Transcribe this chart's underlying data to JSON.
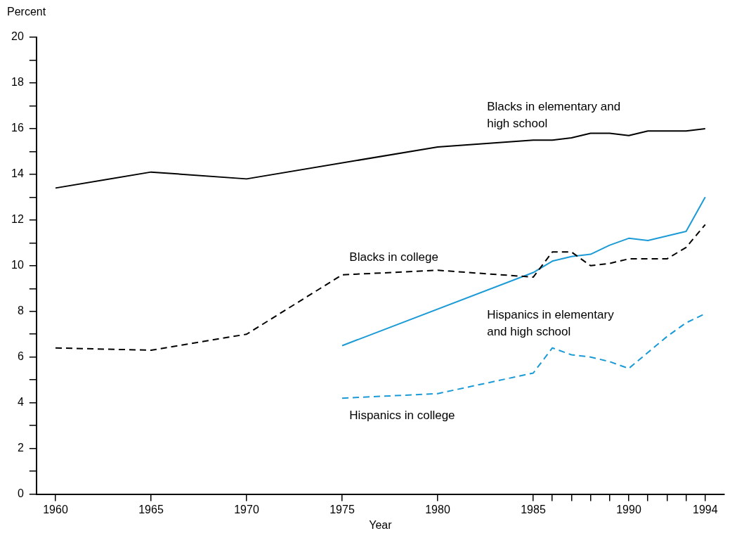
{
  "chart_data": {
    "type": "line",
    "xlabel": "Year",
    "ylabel": "Percent",
    "xlim": [
      1959,
      1995
    ],
    "ylim": [
      0,
      20
    ],
    "xticks": [
      1960,
      1965,
      1970,
      1975,
      1980,
      1985,
      {
        "value": 1986,
        "label": null
      },
      {
        "value": 1987,
        "label": null
      },
      {
        "value": 1988,
        "label": null
      },
      {
        "value": 1989,
        "label": null
      },
      1990,
      {
        "value": 1991,
        "label": null
      },
      {
        "value": 1992,
        "label": null
      },
      {
        "value": 1993,
        "label": null
      },
      1994
    ],
    "yticks": [
      0,
      {
        "value": 1,
        "label": null
      },
      2,
      {
        "value": 3,
        "label": null
      },
      4,
      {
        "value": 5,
        "label": null
      },
      6,
      {
        "value": 7,
        "label": null
      },
      8,
      {
        "value": 9,
        "label": null
      },
      10,
      {
        "value": 11,
        "label": null
      },
      12,
      {
        "value": 13,
        "label": null
      },
      14,
      {
        "value": 15,
        "label": null
      },
      16,
      {
        "value": 17,
        "label": null
      },
      18,
      {
        "value": 19,
        "label": null
      },
      20
    ],
    "grid": false,
    "legend": false,
    "marker": "none",
    "series": [
      {
        "name": "Blacks in elementary and high school",
        "color": "#000000",
        "line_style": "solid",
        "x": [
          1960,
          1965,
          1970,
          1980,
          1985,
          1986,
          1987,
          1988,
          1989,
          1990,
          1991,
          1992,
          1993,
          1994
        ],
        "values": [
          13.4,
          14.1,
          13.8,
          15.2,
          15.5,
          15.5,
          15.6,
          15.8,
          15.8,
          15.7,
          15.9,
          15.9,
          15.9,
          16.0
        ]
      },
      {
        "name": "Blacks in college",
        "color": "#000000",
        "line_style": "dashed",
        "x": [
          1960,
          1965,
          1970,
          1975,
          1980,
          1985,
          1986,
          1987,
          1988,
          1989,
          1990,
          1991,
          1992,
          1993,
          1994
        ],
        "values": [
          6.4,
          6.3,
          7.0,
          9.6,
          9.8,
          9.5,
          10.6,
          10.6,
          10.0,
          10.1,
          10.3,
          10.3,
          10.3,
          10.8,
          11.8
        ]
      },
      {
        "name": "Hispanics in elementary and high school",
        "color": "#1a9ad6",
        "line_style": "solid",
        "x": [
          1975,
          1985,
          1986,
          1987,
          1988,
          1989,
          1990,
          1991,
          1992,
          1993,
          1994
        ],
        "values": [
          6.5,
          9.7,
          10.2,
          10.4,
          10.5,
          10.9,
          11.2,
          11.1,
          11.3,
          11.5,
          13.0
        ]
      },
      {
        "name": "Hispanics in college",
        "color": "#1a9ad6",
        "line_style": "dashed",
        "x": [
          1975,
          1980,
          1985,
          1986,
          1987,
          1988,
          1989,
          1990,
          1991,
          1992,
          1993,
          1994
        ],
        "values": [
          4.2,
          4.4,
          5.3,
          6.4,
          6.1,
          6.0,
          5.8,
          5.5,
          6.2,
          6.9,
          7.5,
          7.9
        ]
      }
    ]
  }
}
